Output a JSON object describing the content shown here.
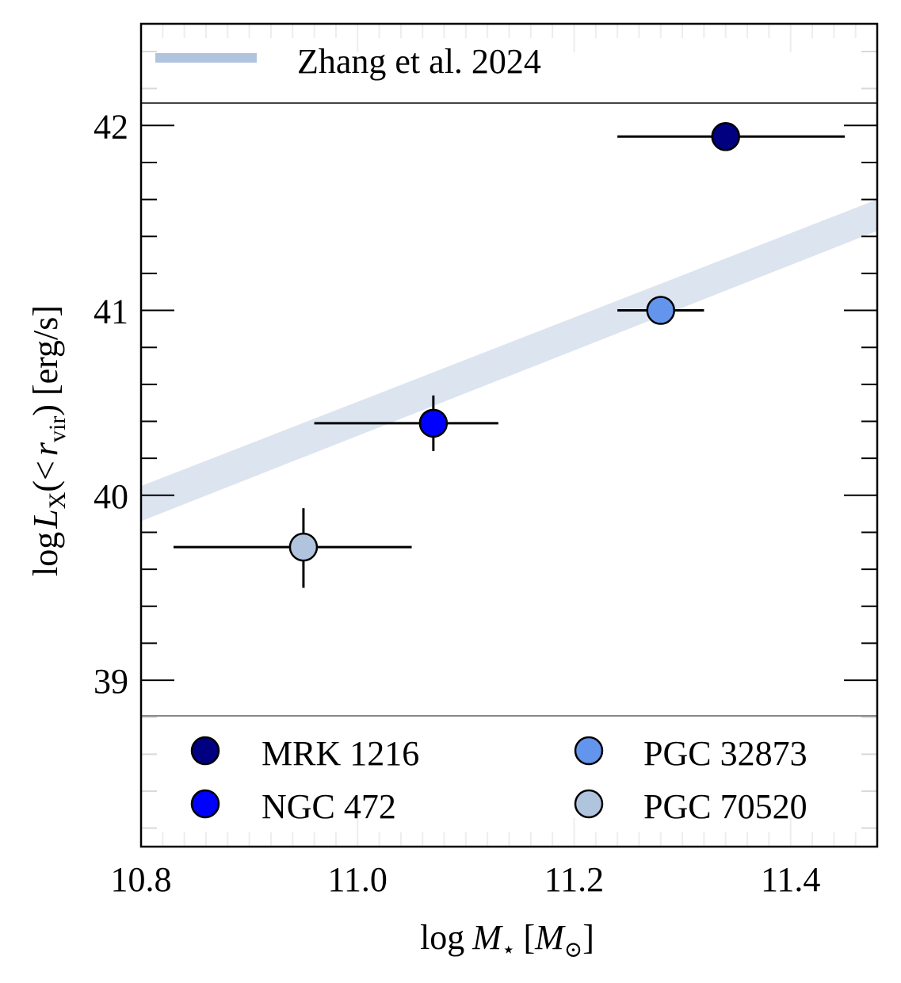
{
  "chart_data": {
    "type": "scatter",
    "xlabel": "log M⋆ [M⊙]",
    "ylabel": "log L_X(< r_vir) [erg/s]",
    "xlim": [
      10.8,
      11.48
    ],
    "ylim": [
      38.1,
      42.55
    ],
    "x_ticks": [
      "10.8",
      "11.0",
      "11.2",
      "11.4"
    ],
    "y_ticks": [
      "39",
      "40",
      "41",
      "42"
    ],
    "series": [
      {
        "name": "MRK 1216",
        "x": 11.34,
        "y": 41.94,
        "xerr": [
          0.1,
          0.11
        ],
        "yerr": [
          0,
          0
        ],
        "color": "#000080"
      },
      {
        "name": "NGC 472",
        "x": 11.07,
        "y": 40.39,
        "xerr": [
          0.11,
          0.06
        ],
        "yerr": [
          0.15,
          0.15
        ],
        "color": "#0000ff"
      },
      {
        "name": "PGC 32873",
        "x": 11.28,
        "y": 41.0,
        "xerr": [
          0.04,
          0.04
        ],
        "yerr": [
          0,
          0
        ],
        "color": "#6495ed"
      },
      {
        "name": "PGC 70520",
        "x": 10.95,
        "y": 39.72,
        "xerr": [
          0.12,
          0.1
        ],
        "yerr": [
          0.22,
          0.21
        ],
        "color": "#b0c4de"
      }
    ],
    "relation": {
      "name": "Zhang et al. 2024",
      "color": "#b0c4de",
      "lower": {
        "x": [
          10.8,
          11.48
        ],
        "y": [
          39.86,
          41.43
        ]
      },
      "upper": {
        "x": [
          10.8,
          11.48
        ],
        "y": [
          40.05,
          41.6
        ]
      }
    }
  },
  "legend_top": {
    "label": "Zhang et al. 2024"
  },
  "legend_bottom": {
    "labels": [
      "MRK 1216",
      "NGC 472",
      "PGC 32873",
      "PGC 70520"
    ]
  }
}
